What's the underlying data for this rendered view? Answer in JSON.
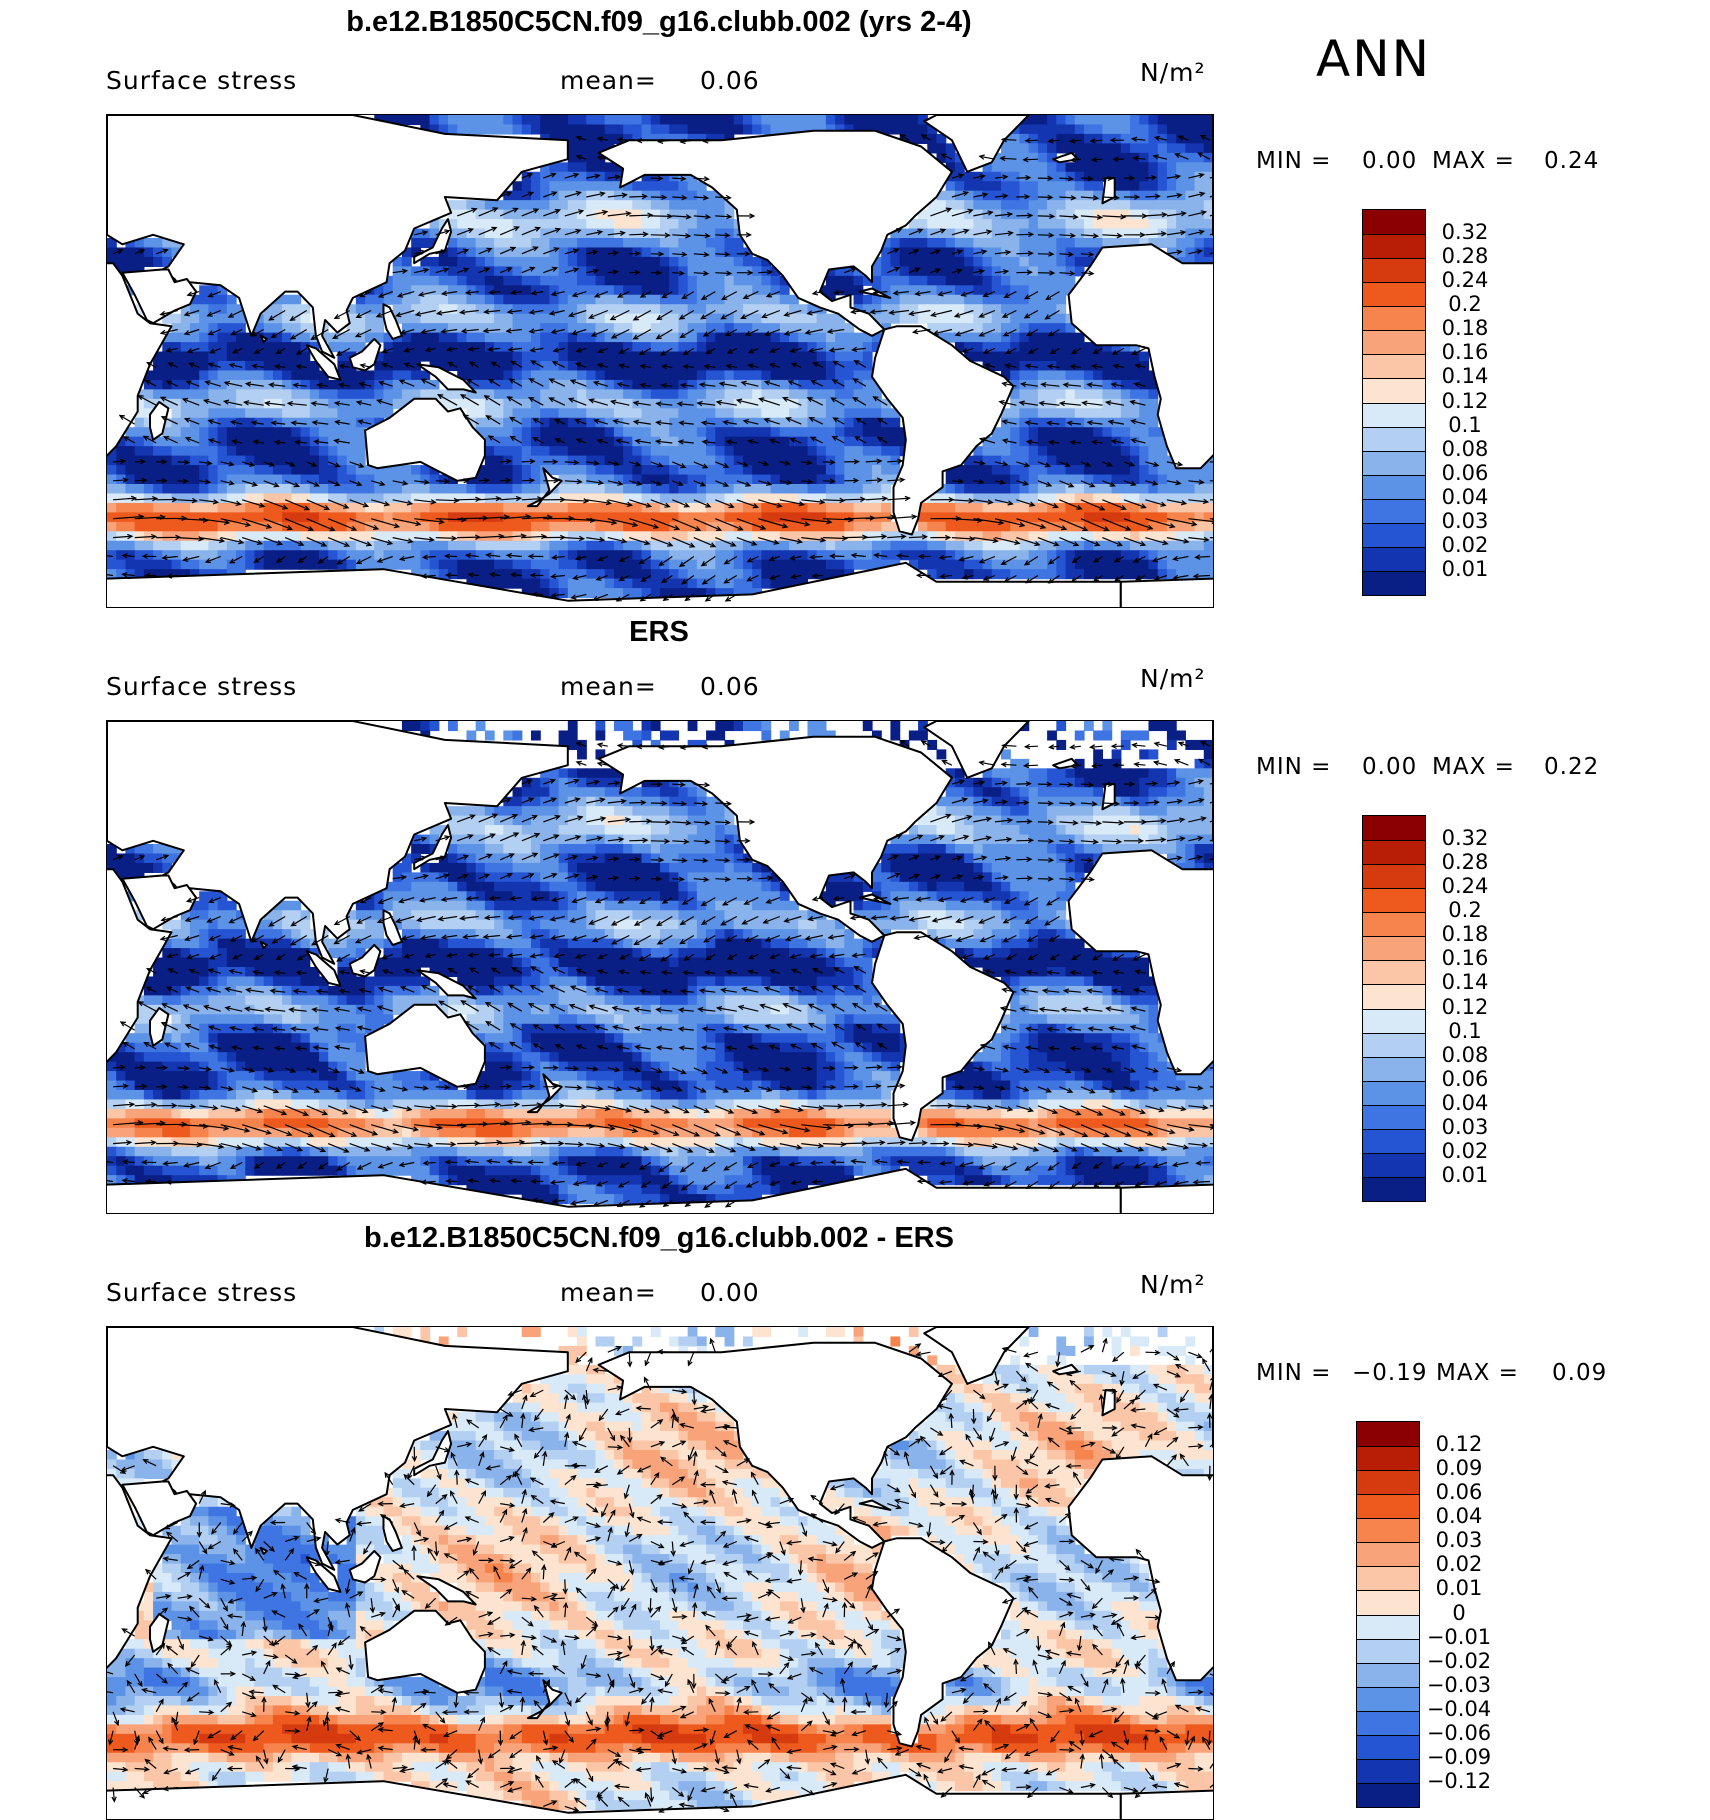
{
  "season": "ANN",
  "units": "N/m²",
  "panels": [
    {
      "title": "b.e12.B1850C5CN.f09_g16.clubb.002 (yrs 2-4)",
      "variable": "Surface stress",
      "mean_label": "mean=",
      "mean_value": "0.06",
      "min_label": "MIN =",
      "min_value": "0.00",
      "max_label": "MAX =",
      "max_value": "0.24",
      "colorbar_labels": [
        "0.32",
        "0.28",
        "0.24",
        "0.2",
        "0.18",
        "0.16",
        "0.14",
        "0.12",
        "0.1",
        "0.08",
        "0.06",
        "0.04",
        "0.03",
        "0.02",
        "0.01"
      ],
      "colors": [
        "#8b0000",
        "#b81d05",
        "#d63a0f",
        "#ee5a1e",
        "#f6844c",
        "#f8a37a",
        "#fbc6a7",
        "#fde4d0",
        "#d8e9f8",
        "#b3d0f2",
        "#8ab3eb",
        "#5c93e6",
        "#3f75e2",
        "#2655d3",
        "#1435b0",
        "#0a1f86"
      ]
    },
    {
      "title": "ERS",
      "variable": "Surface stress",
      "mean_label": "mean=",
      "mean_value": "0.06",
      "min_label": "MIN =",
      "min_value": "0.00",
      "max_label": "MAX =",
      "max_value": "0.22",
      "colorbar_labels": [
        "0.32",
        "0.28",
        "0.24",
        "0.2",
        "0.18",
        "0.16",
        "0.14",
        "0.12",
        "0.1",
        "0.08",
        "0.06",
        "0.04",
        "0.03",
        "0.02",
        "0.01"
      ],
      "colors": [
        "#8b0000",
        "#b81d05",
        "#d63a0f",
        "#ee5a1e",
        "#f6844c",
        "#f8a37a",
        "#fbc6a7",
        "#fde4d0",
        "#d8e9f8",
        "#b3d0f2",
        "#8ab3eb",
        "#5c93e6",
        "#3f75e2",
        "#2655d3",
        "#1435b0",
        "#0a1f86"
      ]
    },
    {
      "title": "b.e12.B1850C5CN.f09_g16.clubb.002 - ERS",
      "variable": "Surface stress",
      "mean_label": "mean=",
      "mean_value": "0.00",
      "min_label": "MIN =",
      "min_value": "−0.19",
      "max_label": "MAX =",
      "max_value": "0.09",
      "colorbar_labels": [
        "0.12",
        "0.09",
        "0.06",
        "0.04",
        "0.03",
        "0.02",
        "0.01",
        "0",
        "−0.01",
        "−0.02",
        "−0.03",
        "−0.04",
        "−0.06",
        "−0.09",
        "−0.12"
      ],
      "colors": [
        "#8b0000",
        "#b81d05",
        "#d63a0f",
        "#ee5a1e",
        "#f6844c",
        "#f8a37a",
        "#fbc6a7",
        "#fde4d0",
        "#d8e9f8",
        "#b3d0f2",
        "#8ab3eb",
        "#5c93e6",
        "#3f75e2",
        "#2655d3",
        "#1435b0",
        "#0a1f86"
      ]
    }
  ]
}
